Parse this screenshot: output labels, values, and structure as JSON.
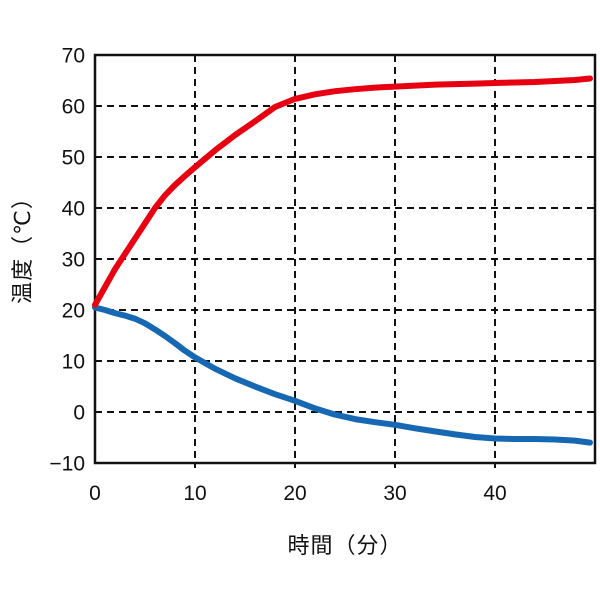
{
  "chart_data": {
    "type": "line",
    "title": "",
    "xlabel": "時間（分）",
    "ylabel": "温度（℃）",
    "xlim": [
      0,
      50
    ],
    "ylim": [
      -10,
      70
    ],
    "xticks": [
      0,
      10,
      20,
      30,
      40
    ],
    "yticks": [
      -10,
      0,
      10,
      20,
      30,
      40,
      50,
      60,
      70
    ],
    "grid": true,
    "grid_style": "dashed",
    "legend_position": "none",
    "axis_color": "#111111",
    "grid_color": "#111111",
    "tick_font_px": 21,
    "series": [
      {
        "name": "blue-cooling-line",
        "color": "#1668b3",
        "x": [
          0,
          1,
          2,
          3,
          4,
          5,
          6,
          7,
          8,
          9,
          10,
          12,
          14,
          16,
          18,
          20,
          22,
          24,
          26,
          28,
          30,
          32,
          34,
          36,
          38,
          40,
          42,
          44,
          46,
          48,
          49.5
        ],
        "y": [
          20.5,
          20.0,
          19.4,
          18.9,
          18.3,
          17.4,
          16.2,
          14.9,
          13.5,
          12.0,
          10.7,
          8.5,
          6.6,
          5.0,
          3.5,
          2.2,
          0.7,
          -0.5,
          -1.4,
          -2.0,
          -2.5,
          -3.2,
          -3.8,
          -4.4,
          -4.9,
          -5.2,
          -5.3,
          -5.3,
          -5.4,
          -5.6,
          -6.0
        ]
      },
      {
        "name": "red-heating-line",
        "color": "#e60012",
        "x": [
          0,
          1,
          2,
          3,
          4,
          5,
          6,
          7,
          8,
          9,
          10,
          12,
          14,
          16,
          18,
          20,
          22,
          24,
          26,
          28,
          30,
          32,
          34,
          36,
          38,
          40,
          42,
          44,
          46,
          48,
          49.5
        ],
        "y": [
          21.0,
          24.5,
          28.0,
          31.0,
          34.0,
          37.0,
          40.0,
          42.5,
          44.5,
          46.3,
          48.0,
          51.3,
          54.3,
          57.0,
          59.8,
          61.4,
          62.3,
          62.9,
          63.3,
          63.6,
          63.8,
          64.0,
          64.2,
          64.3,
          64.4,
          64.5,
          64.6,
          64.7,
          64.9,
          65.1,
          65.4
        ]
      }
    ]
  }
}
